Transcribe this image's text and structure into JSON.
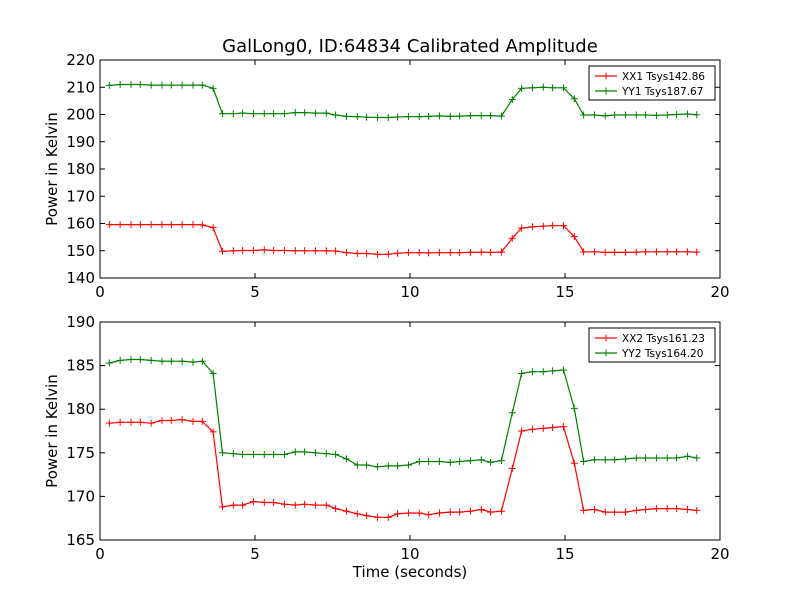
{
  "chart_data": [
    {
      "type": "line",
      "title": "GalLong0, ID:64834 Calibrated Amplitude",
      "xlabel": "",
      "ylabel": "Power in Kelvin",
      "xlim": [
        0,
        20
      ],
      "ylim": [
        140,
        220
      ],
      "x_ticks": [
        "0",
        "5",
        "10",
        "15",
        "20"
      ],
      "y_ticks": [
        "140",
        "150",
        "160",
        "170",
        "180",
        "190",
        "200",
        "210",
        "220"
      ],
      "legend_position": "top-right",
      "grid": false,
      "x": [
        0.3,
        0.65,
        1.0,
        1.3,
        1.65,
        2.0,
        2.3,
        2.65,
        3.0,
        3.3,
        3.65,
        3.95,
        4.3,
        4.6,
        4.95,
        5.3,
        5.6,
        5.95,
        6.3,
        6.6,
        6.95,
        7.3,
        7.6,
        7.95,
        8.3,
        8.6,
        8.95,
        9.3,
        9.6,
        9.95,
        10.3,
        10.6,
        10.95,
        11.3,
        11.6,
        11.95,
        12.3,
        12.6,
        12.95,
        13.3,
        13.6,
        13.95,
        14.3,
        14.6,
        14.95,
        15.3,
        15.6,
        15.95,
        16.3,
        16.6,
        16.95,
        17.3,
        17.6,
        17.95,
        18.3,
        18.6,
        18.95,
        19.25
      ],
      "series": [
        {
          "name": "XX1 Tsys142.86",
          "color": "#ff0000",
          "values": [
            159.6,
            159.6,
            159.6,
            159.6,
            159.6,
            159.6,
            159.6,
            159.6,
            159.6,
            159.5,
            158.5,
            149.8,
            150.0,
            150.1,
            150.1,
            150.3,
            150.1,
            150.1,
            150.0,
            150.0,
            150.0,
            150.0,
            149.9,
            149.3,
            149.0,
            149.0,
            148.7,
            148.7,
            149.1,
            149.3,
            149.3,
            149.2,
            149.3,
            149.3,
            149.3,
            149.4,
            149.5,
            149.4,
            149.5,
            154.6,
            158.3,
            158.8,
            159.0,
            159.2,
            159.2,
            155.2,
            149.6,
            149.6,
            149.4,
            149.4,
            149.4,
            149.5,
            149.6,
            149.6,
            149.6,
            149.6,
            149.6,
            149.5
          ]
        },
        {
          "name": "YY1 Tsys187.67",
          "color": "#008000",
          "values": [
            210.7,
            211.0,
            211.0,
            211.0,
            210.8,
            210.8,
            210.8,
            210.8,
            210.8,
            210.8,
            209.6,
            200.3,
            200.3,
            200.5,
            200.3,
            200.3,
            200.3,
            200.3,
            200.7,
            200.7,
            200.5,
            200.5,
            199.8,
            199.3,
            199.2,
            199.0,
            198.9,
            198.9,
            199.1,
            199.2,
            199.2,
            199.3,
            199.5,
            199.3,
            199.4,
            199.6,
            199.6,
            199.6,
            199.4,
            205.5,
            209.6,
            209.8,
            210.0,
            209.8,
            209.8,
            205.8,
            199.8,
            199.8,
            199.5,
            199.8,
            199.8,
            199.8,
            199.8,
            199.7,
            199.8,
            200.0,
            200.2,
            199.9
          ]
        }
      ]
    },
    {
      "type": "line",
      "title": "",
      "xlabel": "Time (seconds)",
      "ylabel": "Power in Kelvin",
      "xlim": [
        0,
        20
      ],
      "ylim": [
        165,
        190
      ],
      "x_ticks": [
        "0",
        "5",
        "10",
        "15",
        "20"
      ],
      "y_ticks": [
        "165",
        "170",
        "175",
        "180",
        "185",
        "190"
      ],
      "legend_position": "top-right",
      "grid": false,
      "x": [
        0.3,
        0.65,
        1.0,
        1.3,
        1.65,
        2.0,
        2.3,
        2.65,
        3.0,
        3.3,
        3.65,
        3.95,
        4.3,
        4.6,
        4.95,
        5.3,
        5.6,
        5.95,
        6.3,
        6.6,
        6.95,
        7.3,
        7.6,
        7.95,
        8.3,
        8.6,
        8.95,
        9.3,
        9.6,
        9.95,
        10.3,
        10.6,
        10.95,
        11.3,
        11.6,
        11.95,
        12.3,
        12.6,
        12.95,
        13.3,
        13.6,
        13.95,
        14.3,
        14.6,
        14.95,
        15.3,
        15.6,
        15.95,
        16.3,
        16.6,
        16.95,
        17.3,
        17.6,
        17.95,
        18.3,
        18.6,
        18.95,
        19.25
      ],
      "series": [
        {
          "name": "XX2 Tsys161.23",
          "color": "#ff0000",
          "values": [
            178.4,
            178.5,
            178.5,
            178.5,
            178.4,
            178.7,
            178.7,
            178.8,
            178.6,
            178.6,
            177.4,
            168.8,
            169.0,
            169.0,
            169.4,
            169.3,
            169.3,
            169.1,
            169.0,
            169.1,
            169.0,
            169.0,
            168.6,
            168.3,
            168.0,
            167.8,
            167.6,
            167.6,
            168.0,
            168.1,
            168.1,
            167.9,
            168.1,
            168.2,
            168.2,
            168.3,
            168.5,
            168.2,
            168.3,
            173.2,
            177.5,
            177.7,
            177.8,
            177.9,
            178.0,
            173.8,
            168.4,
            168.5,
            168.2,
            168.2,
            168.2,
            168.4,
            168.5,
            168.6,
            168.6,
            168.6,
            168.5,
            168.4
          ]
        },
        {
          "name": "YY2 Tsys164.20",
          "color": "#008000",
          "values": [
            185.3,
            185.6,
            185.7,
            185.7,
            185.6,
            185.5,
            185.5,
            185.5,
            185.4,
            185.5,
            184.1,
            175.0,
            174.9,
            174.8,
            174.8,
            174.8,
            174.8,
            174.8,
            175.1,
            175.1,
            175.0,
            174.9,
            174.8,
            174.3,
            173.6,
            173.6,
            173.4,
            173.5,
            173.5,
            173.6,
            174.0,
            174.0,
            174.0,
            173.9,
            174.0,
            174.1,
            174.2,
            173.9,
            174.1,
            179.6,
            184.1,
            184.3,
            184.3,
            184.4,
            184.5,
            180.1,
            174.0,
            174.2,
            174.2,
            174.2,
            174.3,
            174.4,
            174.4,
            174.4,
            174.4,
            174.4,
            174.6,
            174.4
          ]
        }
      ]
    }
  ]
}
